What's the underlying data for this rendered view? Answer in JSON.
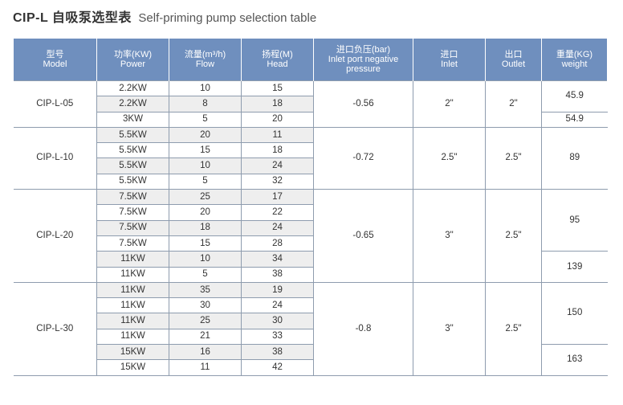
{
  "title": {
    "main": "CIP-L 自吸泵选型表",
    "sub": "Self-priming pump selection table"
  },
  "headers": {
    "model": {
      "cn": "型号",
      "en": "Model"
    },
    "power": {
      "cn": "功率(KW)",
      "en": "Power"
    },
    "flow": {
      "cn": "流量(m³/h)",
      "en": "Flow"
    },
    "head": {
      "cn": "扬程(M)",
      "en": "Head"
    },
    "pressure": {
      "cn": "进口负压(bar)",
      "en": "Inlet port negative pressure"
    },
    "inlet": {
      "cn": "进口",
      "en": "Inlet"
    },
    "outlet": {
      "cn": "出口",
      "en": "Outlet"
    },
    "weight": {
      "cn": "重量(KG)",
      "en": "weight"
    }
  },
  "groups": [
    {
      "model": "CIP-L-05",
      "pressure": "-0.56",
      "inlet": "2\"",
      "outlet": "2\"",
      "rows": [
        {
          "power": "2.2KW",
          "flow": "10",
          "head": "15"
        },
        {
          "power": "2.2KW",
          "flow": "8",
          "head": "18"
        },
        {
          "power": "3KW",
          "flow": "5",
          "head": "20"
        }
      ],
      "weights": [
        {
          "value": "45.9",
          "span": 2
        },
        {
          "value": "54.9",
          "span": 1
        }
      ]
    },
    {
      "model": "CIP-L-10",
      "pressure": "-0.72",
      "inlet": "2.5\"",
      "outlet": "2.5\"",
      "rows": [
        {
          "power": "5.5KW",
          "flow": "20",
          "head": "11"
        },
        {
          "power": "5.5KW",
          "flow": "15",
          "head": "18"
        },
        {
          "power": "5.5KW",
          "flow": "10",
          "head": "24"
        },
        {
          "power": "5.5KW",
          "flow": "5",
          "head": "32"
        }
      ],
      "weights": [
        {
          "value": "89",
          "span": 4
        }
      ]
    },
    {
      "model": "CIP-L-20",
      "pressure": "-0.65",
      "inlet": "3\"",
      "outlet": "2.5\"",
      "rows": [
        {
          "power": "7.5KW",
          "flow": "25",
          "head": "17"
        },
        {
          "power": "7.5KW",
          "flow": "20",
          "head": "22"
        },
        {
          "power": "7.5KW",
          "flow": "18",
          "head": "24"
        },
        {
          "power": "7.5KW",
          "flow": "15",
          "head": "28"
        },
        {
          "power": "11KW",
          "flow": "10",
          "head": "34"
        },
        {
          "power": "11KW",
          "flow": "5",
          "head": "38"
        }
      ],
      "weights": [
        {
          "value": "95",
          "span": 4
        },
        {
          "value": "139",
          "span": 2
        }
      ]
    },
    {
      "model": "CIP-L-30",
      "pressure": "-0.8",
      "inlet": "3\"",
      "outlet": "2.5\"",
      "rows": [
        {
          "power": "11KW",
          "flow": "35",
          "head": "19"
        },
        {
          "power": "11KW",
          "flow": "30",
          "head": "24"
        },
        {
          "power": "11KW",
          "flow": "25",
          "head": "30"
        },
        {
          "power": "11KW",
          "flow": "21",
          "head": "33"
        },
        {
          "power": "15KW",
          "flow": "16",
          "head": "38"
        },
        {
          "power": "15KW",
          "flow": "11",
          "head": "42"
        }
      ],
      "weights": [
        {
          "value": "150",
          "span": 4
        },
        {
          "value": "163",
          "span": 2
        }
      ]
    }
  ]
}
